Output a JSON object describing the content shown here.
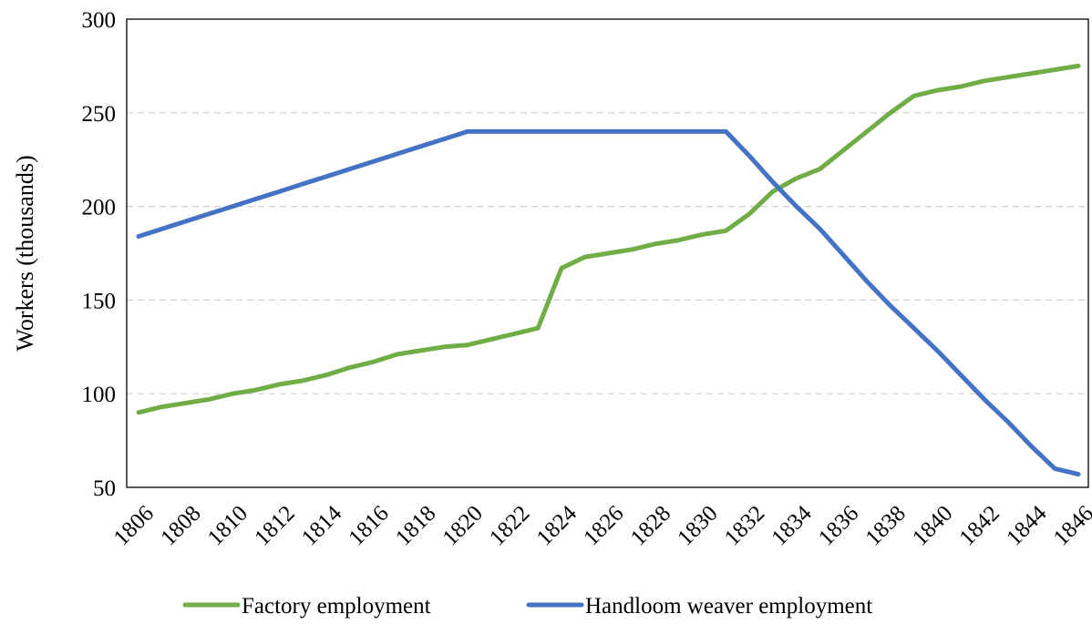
{
  "chart_data": {
    "type": "line",
    "title": "",
    "xlabel": "",
    "ylabel": "Workers (thousands)",
    "ylim": [
      50,
      300
    ],
    "yticks": [
      50,
      100,
      150,
      200,
      250,
      300
    ],
    "grid": "horizontal-dashed",
    "legend_position": "bottom",
    "x": [
      1806,
      1807,
      1808,
      1809,
      1810,
      1811,
      1812,
      1813,
      1814,
      1815,
      1816,
      1817,
      1818,
      1819,
      1820,
      1821,
      1822,
      1823,
      1824,
      1825,
      1826,
      1827,
      1828,
      1829,
      1830,
      1831,
      1832,
      1833,
      1834,
      1835,
      1836,
      1837,
      1838,
      1839,
      1840,
      1841,
      1842,
      1843,
      1844,
      1845,
      1846
    ],
    "xticks": [
      "1806",
      "1808",
      "1810",
      "1812",
      "1814",
      "1816",
      "1818",
      "1820",
      "1822",
      "1824",
      "1826",
      "1828",
      "1830",
      "1832",
      "1834",
      "1836",
      "1838",
      "1840",
      "1842",
      "1844",
      "1846"
    ],
    "series": [
      {
        "name": "Factory employment",
        "color": "#70ad47",
        "values": [
          90,
          93,
          95,
          97,
          100,
          102,
          105,
          107,
          110,
          114,
          117,
          121,
          123,
          125,
          126,
          129,
          132,
          135,
          167,
          173,
          175,
          177,
          180,
          182,
          185,
          187,
          196,
          208,
          215,
          220,
          230,
          240,
          250,
          259,
          262,
          264,
          267,
          269,
          271,
          273,
          275
        ]
      },
      {
        "name": "Handloom weaver employment",
        "color": "#4472c4",
        "values": [
          184,
          188,
          192,
          196,
          200,
          204,
          208,
          212,
          216,
          220,
          224,
          228,
          232,
          236,
          240,
          240,
          240,
          240,
          240,
          240,
          240,
          240,
          240,
          240,
          240,
          240,
          227,
          213,
          200,
          188,
          174,
          160,
          147,
          135,
          123,
          110,
          97,
          85,
          72,
          60,
          57
        ]
      }
    ]
  }
}
